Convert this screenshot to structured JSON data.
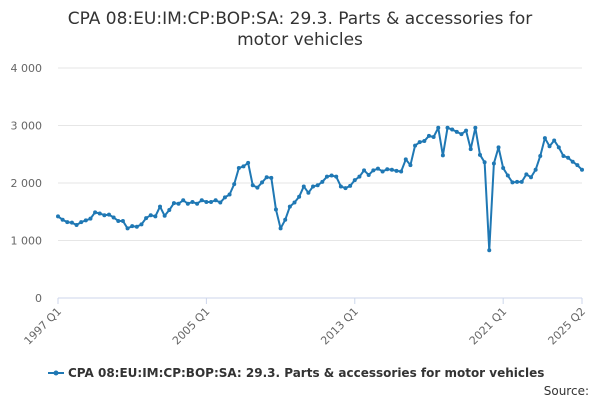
{
  "chart_data": {
    "type": "line",
    "title": "CPA 08:EU:IM:CP:BOP:SA: 29.3. Parts & accessories for motor vehicles",
    "title_lines": [
      "CPA 08:EU:IM:CP:BOP:SA: 29.3. Parts & accessories for",
      "motor vehicles"
    ],
    "xlabel": "",
    "ylabel": "",
    "ylim": [
      0,
      4000
    ],
    "y_ticks": [
      0,
      1000,
      2000,
      3000,
      4000
    ],
    "y_tick_labels": [
      "0",
      "1 000",
      "2 000",
      "3 000",
      "4 000"
    ],
    "x_tick_labels": [
      "1997 Q1",
      "2005 Q1",
      "2013 Q1",
      "2021 Q1",
      "2025 Q2"
    ],
    "x_tick_positions": [
      "1997 Q1",
      "2005 Q1",
      "2013 Q1",
      "2021 Q1",
      "2025 Q2"
    ],
    "grid": "horizontal",
    "legend": "bottom",
    "source_label": "Source:",
    "line_color": "#1f78b4",
    "x": [
      "1997 Q1",
      "1997 Q2",
      "1997 Q3",
      "1997 Q4",
      "1998 Q1",
      "1998 Q2",
      "1998 Q3",
      "1998 Q4",
      "1999 Q1",
      "1999 Q2",
      "1999 Q3",
      "1999 Q4",
      "2000 Q1",
      "2000 Q2",
      "2000 Q3",
      "2000 Q4",
      "2001 Q1",
      "2001 Q2",
      "2001 Q3",
      "2001 Q4",
      "2002 Q1",
      "2002 Q2",
      "2002 Q3",
      "2002 Q4",
      "2003 Q1",
      "2003 Q2",
      "2003 Q3",
      "2003 Q4",
      "2004 Q1",
      "2004 Q2",
      "2004 Q3",
      "2004 Q4",
      "2005 Q1",
      "2005 Q2",
      "2005 Q3",
      "2005 Q4",
      "2006 Q1",
      "2006 Q2",
      "2006 Q3",
      "2006 Q4",
      "2007 Q1",
      "2007 Q2",
      "2007 Q3",
      "2007 Q4",
      "2008 Q1",
      "2008 Q2",
      "2008 Q3",
      "2008 Q4",
      "2009 Q1",
      "2009 Q2",
      "2009 Q3",
      "2009 Q4",
      "2010 Q1",
      "2010 Q2",
      "2010 Q3",
      "2010 Q4",
      "2011 Q1",
      "2011 Q2",
      "2011 Q3",
      "2011 Q4",
      "2012 Q1",
      "2012 Q2",
      "2012 Q3",
      "2012 Q4",
      "2013 Q1",
      "2013 Q2",
      "2013 Q3",
      "2013 Q4",
      "2014 Q1",
      "2014 Q2",
      "2014 Q3",
      "2014 Q4",
      "2015 Q1",
      "2015 Q2",
      "2015 Q3",
      "2015 Q4",
      "2016 Q1",
      "2016 Q2",
      "2016 Q3",
      "2016 Q4",
      "2017 Q1",
      "2017 Q2",
      "2017 Q3",
      "2017 Q4",
      "2018 Q1",
      "2018 Q2",
      "2018 Q3",
      "2018 Q4",
      "2019 Q1",
      "2019 Q2",
      "2019 Q3",
      "2019 Q4",
      "2020 Q1",
      "2020 Q2",
      "2020 Q3",
      "2020 Q4",
      "2021 Q1",
      "2021 Q2",
      "2021 Q3",
      "2021 Q4",
      "2022 Q1",
      "2022 Q2",
      "2022 Q3",
      "2022 Q4",
      "2023 Q1",
      "2023 Q2",
      "2023 Q3",
      "2023 Q4",
      "2024 Q1",
      "2024 Q2",
      "2024 Q3",
      "2024 Q4",
      "2025 Q1",
      "2025 Q2"
    ],
    "series": [
      {
        "name": "CPA 08:EU:IM:CP:BOP:SA: 29.3. Parts & accessories for motor vehicles",
        "values": [
          1420,
          1360,
          1320,
          1310,
          1270,
          1320,
          1350,
          1380,
          1490,
          1470,
          1440,
          1450,
          1400,
          1340,
          1340,
          1210,
          1250,
          1240,
          1280,
          1390,
          1440,
          1420,
          1590,
          1430,
          1530,
          1650,
          1640,
          1700,
          1640,
          1670,
          1640,
          1700,
          1670,
          1670,
          1700,
          1660,
          1750,
          1800,
          1980,
          2260,
          2290,
          2350,
          1960,
          1920,
          2010,
          2100,
          2090,
          1540,
          1210,
          1360,
          1590,
          1660,
          1760,
          1940,
          1830,
          1940,
          1960,
          2020,
          2110,
          2130,
          2110,
          1940,
          1910,
          1950,
          2050,
          2110,
          2220,
          2140,
          2220,
          2250,
          2200,
          2240,
          2230,
          2210,
          2200,
          2410,
          2310,
          2650,
          2710,
          2730,
          2820,
          2800,
          2960,
          2480,
          2960,
          2930,
          2890,
          2850,
          2910,
          2590,
          2960,
          2490,
          2360,
          830,
          2340,
          2620,
          2260,
          2130,
          2010,
          2020,
          2020,
          2150,
          2100,
          2230,
          2470,
          2780,
          2640,
          2740,
          2620,
          2470,
          2440,
          2370,
          2310,
          2230
        ]
      }
    ]
  }
}
